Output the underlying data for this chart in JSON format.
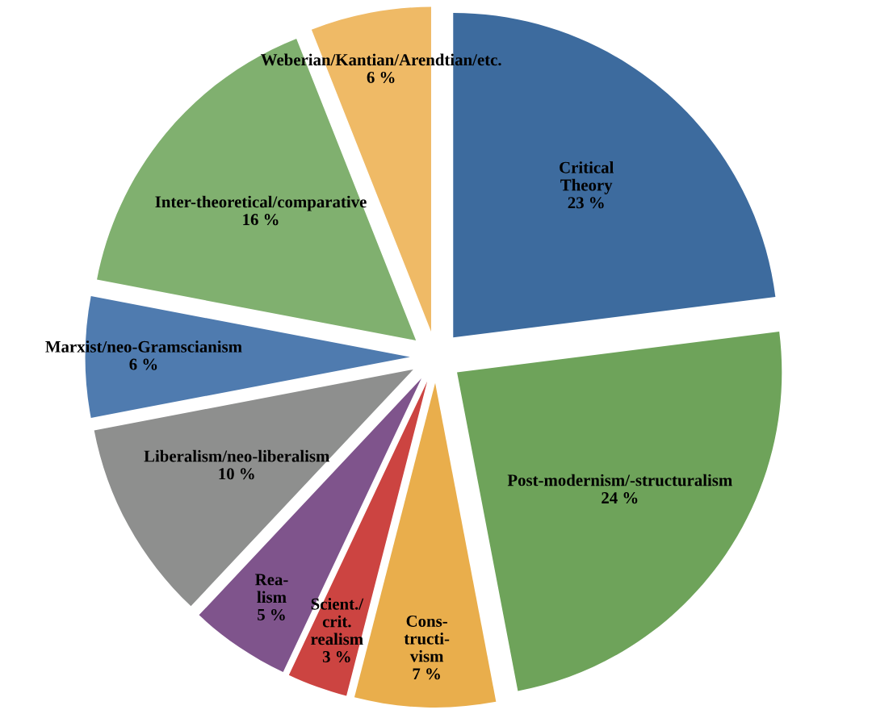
{
  "chart_data": {
    "type": "pie",
    "categories": [
      "Critical\nTheory",
      "Post-modernism/-structuralism",
      "Cons-\ntructi-\nvism",
      "Scient./\ncrit.\nrealism",
      "Rea-\nlism",
      "Liberalism/neo-liberalism",
      "Marxist/neo-Gramscianism",
      "Inter-theoretical/comparative",
      "Weberian/Kantian/Arendtian/etc."
    ],
    "values": [
      23,
      24,
      7,
      3,
      5,
      10,
      6,
      16,
      6
    ],
    "colors": [
      "#3d6b9e",
      "#6ea35a",
      "#e9ae4c",
      "#cc4441",
      "#7f548c",
      "#8e8f8e",
      "#4f7baf",
      "#80b06f",
      "#efba66"
    ],
    "value_labels": [
      "23 %",
      "24 %",
      "7 %",
      "3 %",
      "5 %",
      "10 %",
      "6 %",
      "16 %",
      "6 %"
    ],
    "legend": false
  }
}
